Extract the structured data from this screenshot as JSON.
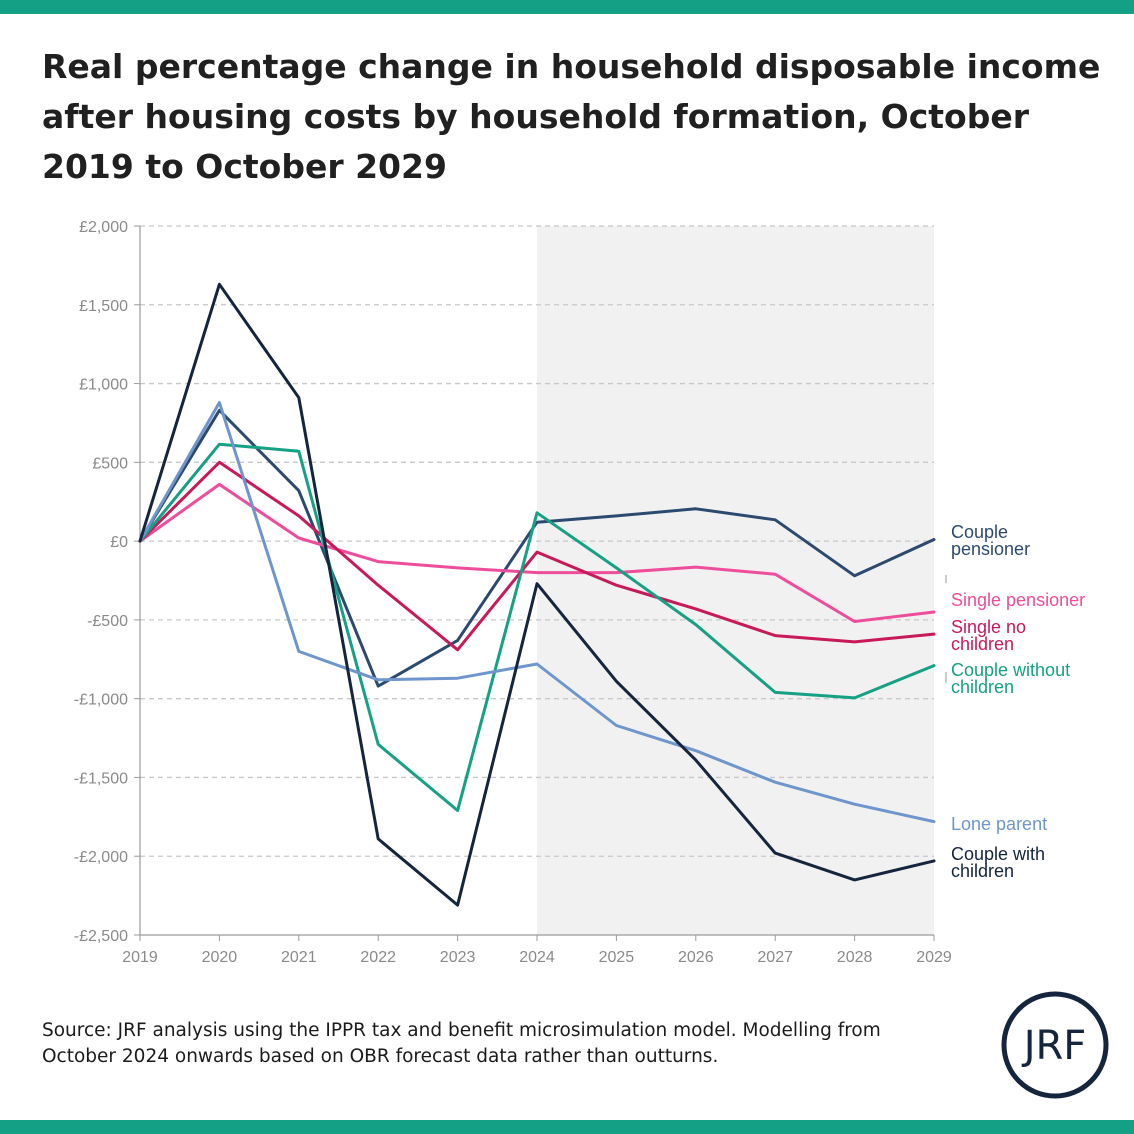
{
  "title": "Real percentage change in household disposable income after housing costs by household formation, October 2019 to October 2029",
  "source_note": "Source: JRF analysis using the IPPR tax and benefit microsimulation model. Modelling from October 2024 onwards based on OBR forecast data rather than outturns.",
  "logo_text": "JRF",
  "colors": {
    "brand_band": "#14a085",
    "forecast_shade": "#f1f1f1",
    "grid": "#c8c8c8",
    "axis_text": "#8a8a8a"
  },
  "chart_data": {
    "type": "line",
    "x": [
      2019,
      2020,
      2021,
      2022,
      2023,
      2024,
      2025,
      2026,
      2027,
      2028,
      2029
    ],
    "ylim": [
      -2500,
      2000
    ],
    "yticks": [
      2000,
      1500,
      1000,
      500,
      0,
      -500,
      -1000,
      -1500,
      -2000,
      -2500
    ],
    "ytick_labels": [
      "£2,000",
      "£1,500",
      "£1,000",
      "£500",
      "£0",
      "-£500",
      "-£1,000",
      "-£1,500",
      "-£2,000",
      "-£2,500"
    ],
    "xtick_labels": [
      "2019",
      "2020",
      "2021",
      "2022",
      "2023",
      "2024",
      "2025",
      "2026",
      "2027",
      "2028",
      "2029"
    ],
    "forecast_shading": {
      "from": 2024,
      "to": 2029
    },
    "grid": true,
    "legend": "right-end labels",
    "series": [
      {
        "name": "Couple pensioner",
        "label_lines": [
          "Couple",
          "pensioner"
        ],
        "color": "#2c4a70",
        "values": [
          0,
          830,
          320,
          -920,
          -630,
          120,
          160,
          205,
          135,
          -220,
          10
        ]
      },
      {
        "name": "Single pensioner",
        "label_lines": [
          "Single pensioner"
        ],
        "color": "#ee4d9b",
        "values": [
          0,
          360,
          20,
          -130,
          -170,
          -200,
          -200,
          -165,
          -210,
          -510,
          -450
        ]
      },
      {
        "name": "Single no children",
        "label_lines": [
          "Single no",
          "children"
        ],
        "color": "#c8195a",
        "values": [
          0,
          500,
          160,
          -280,
          -690,
          -70,
          -280,
          -430,
          -600,
          -640,
          -590
        ]
      },
      {
        "name": "Couple without children",
        "label_lines": [
          "Couple without",
          "children"
        ],
        "color": "#16a084",
        "values": [
          0,
          615,
          570,
          -1290,
          -1710,
          180,
          -170,
          -530,
          -960,
          -995,
          -790
        ]
      },
      {
        "name": "Lone parent",
        "label_lines": [
          "Lone parent"
        ],
        "color": "#6f96cc",
        "values": [
          0,
          880,
          -700,
          -880,
          -870,
          -780,
          -1170,
          -1330,
          -1530,
          -1670,
          -1780
        ]
      },
      {
        "name": "Couple with children",
        "label_lines": [
          "Couple with",
          "children"
        ],
        "color": "#14253d",
        "values": [
          0,
          1630,
          910,
          -1890,
          -2310,
          -270,
          -890,
          -1390,
          -1980,
          -2150,
          -2030
        ]
      }
    ]
  }
}
